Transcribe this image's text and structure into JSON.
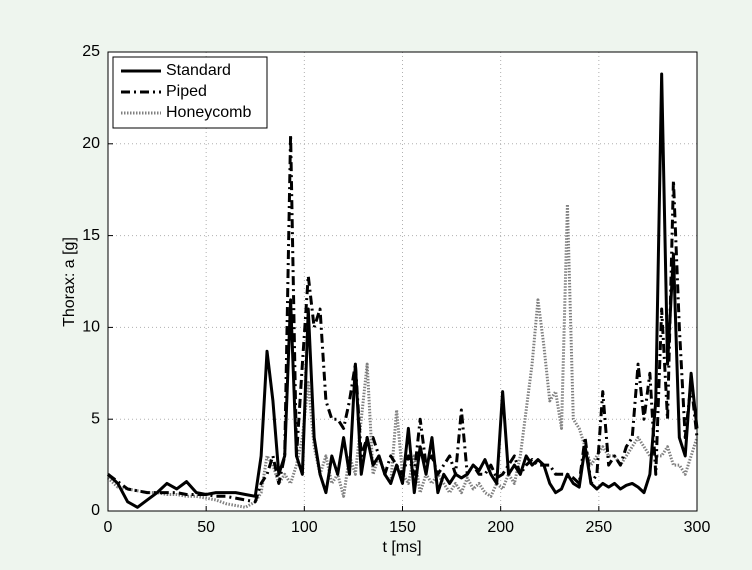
{
  "chart_data": {
    "type": "line",
    "xlabel": "t [ms]",
    "ylabel": "Thorax: a [g]",
    "x": [
      0,
      5,
      10,
      15,
      20,
      25,
      30,
      35,
      40,
      45,
      50,
      55,
      60,
      65,
      70,
      75,
      78,
      81,
      84,
      87,
      90,
      93,
      96,
      99,
      102,
      105,
      108,
      111,
      114,
      117,
      120,
      123,
      126,
      129,
      132,
      135,
      138,
      141,
      144,
      147,
      150,
      153,
      156,
      159,
      162,
      165,
      168,
      171,
      174,
      177,
      180,
      183,
      186,
      189,
      192,
      195,
      198,
      201,
      204,
      207,
      210,
      213,
      216,
      219,
      222,
      225,
      228,
      231,
      234,
      237,
      240,
      243,
      246,
      249,
      252,
      255,
      258,
      261,
      264,
      267,
      270,
      273,
      276,
      279,
      282,
      285,
      288,
      291,
      294,
      297,
      300
    ],
    "series": [
      {
        "name": "Standard",
        "color": "#000000",
        "style": "solid",
        "values": [
          2.0,
          1.5,
          0.5,
          0.2,
          0.6,
          1.0,
          1.5,
          1.2,
          1.6,
          1.0,
          0.9,
          1.0,
          1.0,
          1.0,
          0.9,
          0.8,
          3,
          8.7,
          6,
          2,
          3,
          11.5,
          3,
          2,
          11,
          4,
          2,
          1,
          3,
          2,
          4,
          2,
          8,
          2,
          4,
          2.5,
          3,
          2,
          1.5,
          2.5,
          1.5,
          4.5,
          1,
          3.5,
          2,
          4,
          1,
          2,
          1.5,
          2,
          1.8,
          2,
          2.5,
          2.2,
          2.8,
          2,
          1.5,
          6.5,
          2,
          2.5,
          2,
          3,
          2.5,
          2.8,
          2.5,
          1.5,
          1,
          1.2,
          2,
          1.5,
          1.3,
          3.5,
          1.5,
          1.2,
          1.5,
          1.3,
          1.5,
          1.2,
          1.4,
          1.5,
          1.3,
          1,
          2,
          6,
          23.8,
          8,
          14,
          4,
          3,
          7.5,
          4.5
        ]
      },
      {
        "name": "Piped",
        "color": "#000000",
        "style": "dashdot",
        "values": [
          2.0,
          1.6,
          1.2,
          1.1,
          1.0,
          1.0,
          1.0,
          1.0,
          0.9,
          0.9,
          0.9,
          0.8,
          0.8,
          0.7,
          0.6,
          0.5,
          1.5,
          2,
          3,
          1.5,
          3,
          20.5,
          3,
          8,
          12.8,
          10,
          11,
          6,
          5,
          5,
          4.5,
          6,
          8,
          3,
          4,
          4,
          3,
          2,
          3,
          2.5,
          2,
          3,
          2,
          5,
          2.5,
          3,
          2,
          2.5,
          3,
          2,
          5.5,
          2,
          2.5,
          2,
          2,
          2.5,
          1.8,
          2,
          2.5,
          3,
          2,
          2.5,
          2.8,
          2.5,
          2.5,
          2.5,
          2,
          2,
          2,
          1.8,
          1.5,
          4,
          1.5,
          2,
          6.5,
          2.5,
          3,
          2.5,
          3.5,
          4,
          8,
          5,
          7.5,
          2,
          11,
          5,
          18,
          10,
          4,
          7,
          4
        ]
      },
      {
        "name": "Honeycomb",
        "color": "#808080",
        "style": "dotted",
        "values": [
          1.8,
          1.3,
          1.2,
          1.1,
          1.0,
          1.0,
          0.9,
          0.9,
          0.8,
          0.8,
          0.7,
          0.6,
          0.4,
          0.3,
          0.2,
          0.5,
          1,
          3,
          2.5,
          1.5,
          2,
          1.5,
          2.5,
          4,
          7,
          3.5,
          2,
          3,
          1.5,
          2,
          0.8,
          3,
          2,
          5,
          8,
          2,
          3,
          2,
          1.5,
          5.5,
          2,
          1.5,
          3,
          1,
          2,
          1.5,
          2,
          1.5,
          1,
          1.5,
          1,
          1.8,
          1.2,
          1.5,
          1,
          0.8,
          1.5,
          1.2,
          2,
          1.5,
          3,
          5.5,
          8,
          11.5,
          9,
          6,
          6.5,
          4.5,
          16.7,
          5,
          4.5,
          3.5,
          2.5,
          3,
          3.5,
          3,
          3,
          2.5,
          3,
          3.5,
          4,
          3.5,
          3,
          3,
          3,
          3.5,
          2.5,
          2.5,
          2,
          3,
          4
        ]
      }
    ],
    "xlim": [
      0,
      300
    ],
    "xticks": [
      0,
      50,
      100,
      150,
      200,
      250,
      300
    ],
    "ylim": [
      0,
      25
    ],
    "yticks": [
      0,
      5,
      10,
      15,
      20,
      25
    ],
    "grid": true,
    "legend": "upper-left"
  }
}
